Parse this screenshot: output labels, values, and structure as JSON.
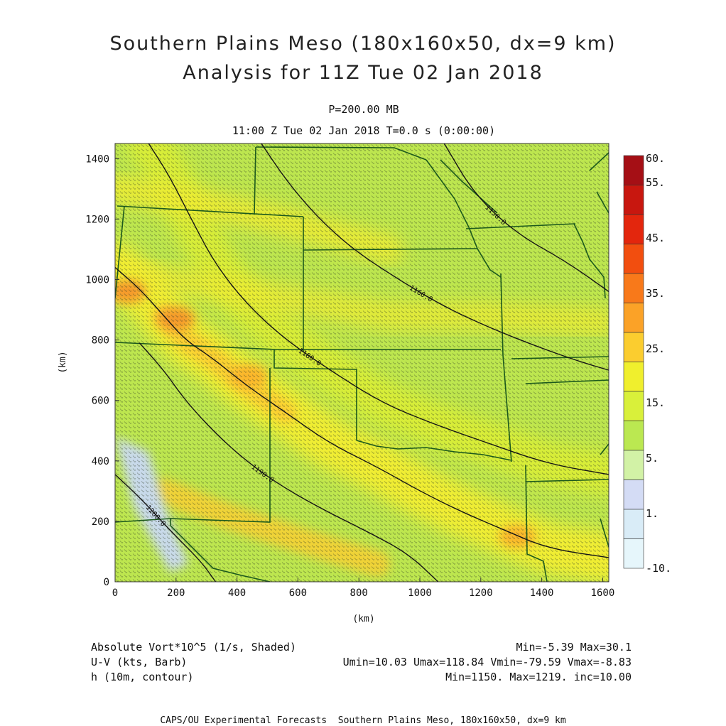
{
  "title": {
    "line1": "Southern Plains Meso (180x160x50, dx=9 km)",
    "line2": "Analysis for 11Z Tue 02 Jan 2018"
  },
  "subtitle": {
    "level": "P=200.00 MB",
    "time": "11:00 Z Tue 02 Jan 2018    T=0.0 s (0:00:00)"
  },
  "chart_data": {
    "type": "heatmap",
    "xlabel": "(km)",
    "ylabel": "(km)",
    "xlim": [
      0,
      1620
    ],
    "ylim": [
      0,
      1450
    ],
    "x_ticks": [
      "0",
      "200",
      "400",
      "600",
      "800",
      "1000",
      "1200",
      "1400",
      "1600"
    ],
    "y_ticks": [
      "0",
      "200",
      "400",
      "600",
      "800",
      "1000",
      "1200",
      "1400"
    ],
    "colorbar": {
      "labels": [
        "60.",
        "55.",
        "45.",
        "35.",
        "25.",
        "15.",
        "5.",
        "1.",
        "-10."
      ],
      "colors": [
        "#a50f15",
        "#c8170f",
        "#e3260d",
        "#f24e0f",
        "#f8791a",
        "#fba227",
        "#fbcd2f",
        "#f0ef2d",
        "#d9f03a",
        "#bbe851",
        "#d2f2a6",
        "#d4dcf5",
        "#d9ecf7",
        "#e6f6fb"
      ]
    },
    "contours": [
      {
        "label": "1180.0",
        "points": [
          [
            110,
            1450
          ],
          [
            180,
            1340
          ],
          [
            260,
            1180
          ],
          [
            330,
            1050
          ],
          [
            430,
            920
          ],
          [
            560,
            800
          ],
          [
            720,
            690
          ],
          [
            880,
            590
          ],
          [
            1050,
            520
          ],
          [
            1220,
            460
          ],
          [
            1420,
            390
          ],
          [
            1620,
            355
          ]
        ]
      },
      {
        "label": "1190.0",
        "points": [
          [
            80,
            790
          ],
          [
            160,
            700
          ],
          [
            230,
            600
          ],
          [
            330,
            490
          ],
          [
            430,
            400
          ],
          [
            540,
            320
          ],
          [
            680,
            240
          ],
          [
            820,
            170
          ],
          [
            960,
            95
          ],
          [
            1060,
            0
          ]
        ]
      },
      {
        "label": "1200.0",
        "points": [
          [
            0,
            355
          ],
          [
            90,
            270
          ],
          [
            180,
            170
          ],
          [
            280,
            70
          ],
          [
            330,
            0
          ]
        ]
      },
      {
        "label": "1160.0",
        "points": [
          [
            480,
            1450
          ],
          [
            560,
            1330
          ],
          [
            660,
            1210
          ],
          [
            780,
            1100
          ],
          [
            930,
            1000
          ],
          [
            1080,
            910
          ],
          [
            1230,
            840
          ],
          [
            1380,
            780
          ],
          [
            1520,
            730
          ],
          [
            1620,
            700
          ]
        ]
      },
      {
        "label": "1150.0",
        "points": [
          [
            1080,
            1450
          ],
          [
            1180,
            1280
          ],
          [
            1320,
            1150
          ],
          [
            1480,
            1060
          ],
          [
            1620,
            960
          ]
        ]
      },
      {
        "label": "",
        "points": [
          [
            0,
            1040
          ],
          [
            80,
            970
          ],
          [
            160,
            880
          ],
          [
            230,
            800
          ],
          [
            320,
            740
          ],
          [
            430,
            650
          ],
          [
            560,
            560
          ],
          [
            700,
            460
          ],
          [
            860,
            380
          ],
          [
            1000,
            300
          ],
          [
            1140,
            230
          ],
          [
            1280,
            170
          ],
          [
            1420,
            110
          ],
          [
            1620,
            80
          ]
        ]
      }
    ],
    "vorticity_maxima": [
      {
        "x": 40,
        "y": 960,
        "value": 30
      },
      {
        "x": 200,
        "y": 870,
        "value": 28
      },
      {
        "x": 440,
        "y": 680,
        "value": 25
      },
      {
        "x": 1320,
        "y": 150,
        "value": 27
      }
    ],
    "vorticity_minima": [
      {
        "x": 90,
        "y": 350,
        "value": -5
      }
    ]
  },
  "footer": {
    "line1_left": "Absolute Vort*10^5 (1/s, Shaded)",
    "line1_right": "Min=-5.39 Max=30.1",
    "line2_left": "U-V (kts, Barb)",
    "line2_right": "Umin=10.03 Umax=118.84 Vmin=-79.59 Vmax=-8.83",
    "line3_left": "h (10m, contour)",
    "line3_right": "Min=1150. Max=1219. inc=10.00",
    "credit": "CAPS/OU Experimental Forecasts  Southern Plains Meso, 180x160x50, dx=9 km"
  }
}
